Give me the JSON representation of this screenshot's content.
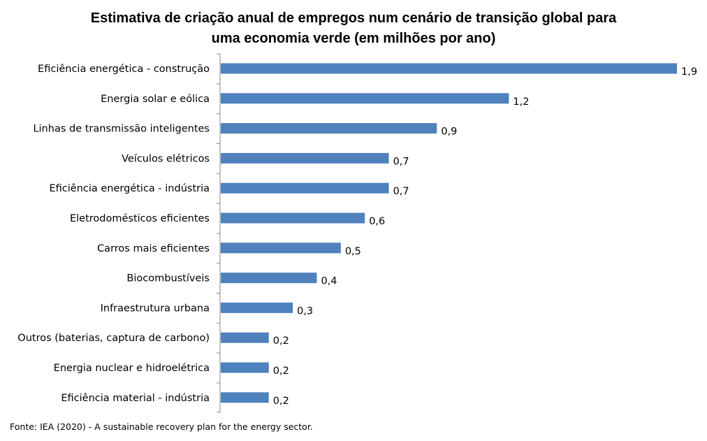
{
  "chart_data": {
    "type": "bar",
    "orientation": "horizontal",
    "title": "Estimativa de criação anual de empregos num cenário de transição global para uma economia verde (em milhões por ano)",
    "title_lines": [
      "Estimativa de criação anual de empregos num cenário de transição global para",
      "uma economia verde (em milhões por ano)"
    ],
    "categories": [
      "Eficiência energética - construção",
      "Energia solar e eólica",
      "Linhas de transmissão inteligentes",
      "Veículos elétricos",
      "Eficiência energética - indústria",
      "Eletrodomésticos eficientes",
      "Carros mais eficientes",
      "Biocombustíveis",
      "Infraestrutura urbana",
      "Outros (baterias, captura de carbono)",
      "Energia nuclear e hidroelétrica",
      "Eficiência material - indústria"
    ],
    "values": [
      1.9,
      1.2,
      0.9,
      0.7,
      0.7,
      0.6,
      0.5,
      0.4,
      0.3,
      0.2,
      0.2,
      0.2
    ],
    "data_labels": [
      "1,9",
      "1,2",
      "0,9",
      "0,7",
      "0,7",
      "0,6",
      "0,5",
      "0,4",
      "0,3",
      "0,2",
      "0,2",
      "0,2"
    ],
    "xlim": [
      0,
      1.9
    ],
    "grid": false,
    "bar_color": "#4f81bd"
  },
  "source": "Fonte: IEA (2020) - A sustainable recovery plan for the energy sector."
}
